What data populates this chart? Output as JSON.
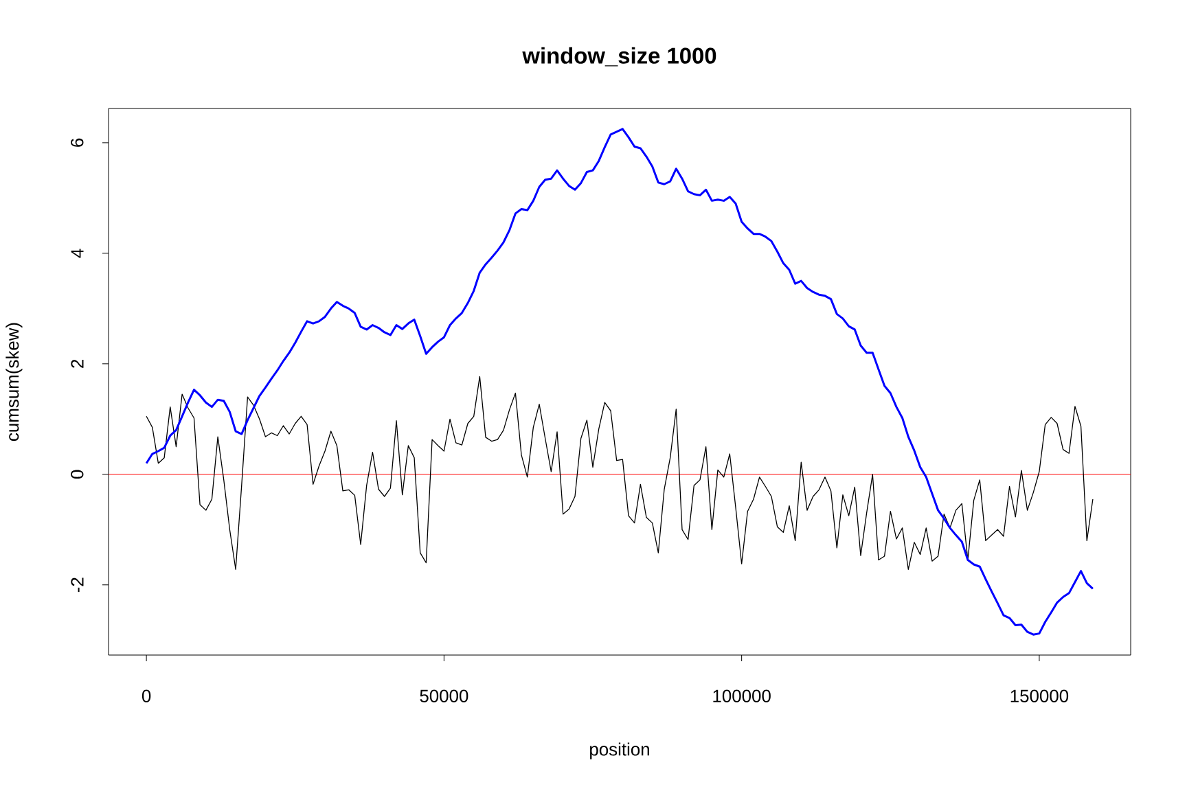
{
  "chart_data": {
    "type": "line",
    "title": "window_size 1000",
    "xlabel": "position",
    "ylabel": "cumsum(skew)",
    "x": [
      0,
      1000,
      2000,
      3000,
      4000,
      5000,
      6000,
      7000,
      8000,
      9000,
      10000,
      11000,
      12000,
      13000,
      14000,
      15000,
      16000,
      17000,
      18000,
      19000,
      20000,
      21000,
      22000,
      23000,
      24000,
      25000,
      26000,
      27000,
      28000,
      29000,
      30000,
      31000,
      32000,
      33000,
      34000,
      35000,
      36000,
      37000,
      38000,
      39000,
      40000,
      41000,
      42000,
      43000,
      44000,
      45000,
      46000,
      47000,
      48000,
      49000,
      50000,
      51000,
      52000,
      53000,
      54000,
      55000,
      56000,
      57000,
      58000,
      59000,
      60000,
      61000,
      62000,
      63000,
      64000,
      65000,
      66000,
      67000,
      68000,
      69000,
      70000,
      71000,
      72000,
      73000,
      74000,
      75000,
      76000,
      77000,
      78000,
      79000,
      80000,
      81000,
      82000,
      83000,
      84000,
      85000,
      86000,
      87000,
      88000,
      89000,
      90000,
      91000,
      92000,
      93000,
      94000,
      95000,
      96000,
      97000,
      98000,
      99000,
      100000,
      101000,
      102000,
      103000,
      104000,
      105000,
      106000,
      107000,
      108000,
      109000,
      110000,
      111000,
      112000,
      113000,
      114000,
      115000,
      116000,
      117000,
      118000,
      119000,
      120000,
      121000,
      122000,
      123000,
      124000,
      125000,
      126000,
      127000,
      128000,
      129000,
      130000,
      131000,
      132000,
      133000,
      134000,
      135000,
      136000,
      137000,
      138000,
      139000,
      140000,
      141000,
      142000,
      143000,
      144000,
      145000,
      146000,
      147000,
      148000,
      149000,
      150000,
      151000,
      152000,
      153000,
      154000,
      155000,
      156000,
      157000,
      158000,
      159000
    ],
    "series": [
      {
        "color": "#000000",
        "values": [
          1.05,
          0.85,
          0.2,
          0.3,
          1.22,
          0.5,
          1.45,
          1.2,
          1.02,
          -0.55,
          -0.65,
          -0.45,
          0.68,
          -0.1,
          -1.0,
          -1.72,
          -0.2,
          1.4,
          1.25,
          1.0,
          0.68,
          0.75,
          0.7,
          0.88,
          0.73,
          0.92,
          1.05,
          0.9,
          -0.18,
          0.15,
          0.42,
          0.78,
          0.52,
          -0.3,
          -0.28,
          -0.38,
          -1.27,
          -0.2,
          0.4,
          -0.27,
          -0.4,
          -0.25,
          0.97,
          -0.37,
          0.52,
          0.3,
          -1.42,
          -1.6,
          0.63,
          0.52,
          0.42,
          1.0,
          0.57,
          0.53,
          0.92,
          1.05,
          1.77,
          0.67,
          0.6,
          0.63,
          0.8,
          1.17,
          1.47,
          0.35,
          -0.05,
          0.85,
          1.27,
          0.65,
          0.05,
          0.77,
          -0.72,
          -0.63,
          -0.4,
          0.65,
          0.98,
          0.13,
          0.82,
          1.3,
          1.15,
          0.25,
          0.27,
          -0.75,
          -0.88,
          -0.18,
          -0.78,
          -0.88,
          -1.42,
          -0.27,
          0.3,
          1.18,
          -1.0,
          -1.18,
          -0.2,
          -0.1,
          0.5,
          -1.0,
          0.08,
          -0.05,
          0.37,
          -0.6,
          -1.62,
          -0.67,
          -0.45,
          -0.05,
          -0.22,
          -0.4,
          -0.95,
          -1.05,
          -0.57,
          -1.2,
          0.22,
          -0.65,
          -0.4,
          -0.28,
          -0.05,
          -0.3,
          -1.33,
          -0.37,
          -0.75,
          -0.23,
          -1.47,
          -0.7,
          0.0,
          -1.55,
          -1.48,
          -0.67,
          -1.17,
          -0.97,
          -1.72,
          -1.23,
          -1.45,
          -0.97,
          -1.57,
          -1.48,
          -0.72,
          -0.97,
          -0.65,
          -0.53,
          -1.55,
          -0.47,
          -0.1,
          -1.2,
          -1.1,
          -1.0,
          -1.12,
          -0.22,
          -0.77,
          0.07,
          -0.65,
          -0.33,
          0.05,
          0.9,
          1.03,
          0.92,
          0.45,
          0.38,
          1.23,
          0.87,
          -1.2,
          -0.45
        ]
      },
      {
        "color": "#0000ff",
        "values": [
          0.2,
          0.37,
          0.42,
          0.48,
          0.7,
          0.8,
          1.05,
          1.3,
          1.53,
          1.43,
          1.3,
          1.22,
          1.35,
          1.33,
          1.13,
          0.78,
          0.73,
          0.98,
          1.2,
          1.42,
          1.57,
          1.73,
          1.88,
          2.05,
          2.2,
          2.38,
          2.58,
          2.77,
          2.73,
          2.77,
          2.85,
          3.0,
          3.12,
          3.05,
          3.0,
          2.92,
          2.67,
          2.62,
          2.7,
          2.65,
          2.57,
          2.52,
          2.7,
          2.63,
          2.73,
          2.8,
          2.5,
          2.18,
          2.3,
          2.4,
          2.48,
          2.7,
          2.82,
          2.92,
          3.1,
          3.32,
          3.65,
          3.8,
          3.92,
          4.05,
          4.2,
          4.42,
          4.72,
          4.8,
          4.78,
          4.95,
          5.2,
          5.33,
          5.35,
          5.5,
          5.35,
          5.22,
          5.15,
          5.27,
          5.47,
          5.5,
          5.67,
          5.92,
          6.15,
          6.2,
          6.25,
          6.1,
          5.93,
          5.9,
          5.75,
          5.57,
          5.28,
          5.25,
          5.3,
          5.53,
          5.35,
          5.12,
          5.07,
          5.05,
          5.15,
          4.95,
          4.97,
          4.95,
          5.02,
          4.9,
          4.57,
          4.45,
          4.35,
          4.35,
          4.3,
          4.22,
          4.03,
          3.82,
          3.7,
          3.45,
          3.5,
          3.37,
          3.3,
          3.25,
          3.23,
          3.17,
          2.9,
          2.82,
          2.68,
          2.62,
          2.33,
          2.2,
          2.2,
          1.9,
          1.6,
          1.47,
          1.22,
          1.02,
          0.68,
          0.43,
          0.13,
          -0.05,
          -0.35,
          -0.65,
          -0.8,
          -0.97,
          -1.1,
          -1.22,
          -1.55,
          -1.63,
          -1.67,
          -1.9,
          -2.12,
          -2.33,
          -2.55,
          -2.6,
          -2.73,
          -2.72,
          -2.85,
          -2.9,
          -2.88,
          -2.67,
          -2.5,
          -2.32,
          -2.22,
          -2.15,
          -1.95,
          -1.75,
          -1.97,
          -2.07
        ]
      }
    ],
    "xlim": [
      -6360,
      165360
    ],
    "ylim": [
      -3.27,
      6.62
    ],
    "xticks": [
      0,
      50000,
      100000,
      150000
    ],
    "yticks": [
      -2,
      0,
      2,
      4,
      6
    ],
    "ref_lines": [
      {
        "axis": "y",
        "value": 0,
        "color": "#ff0000"
      }
    ],
    "grid": false
  }
}
